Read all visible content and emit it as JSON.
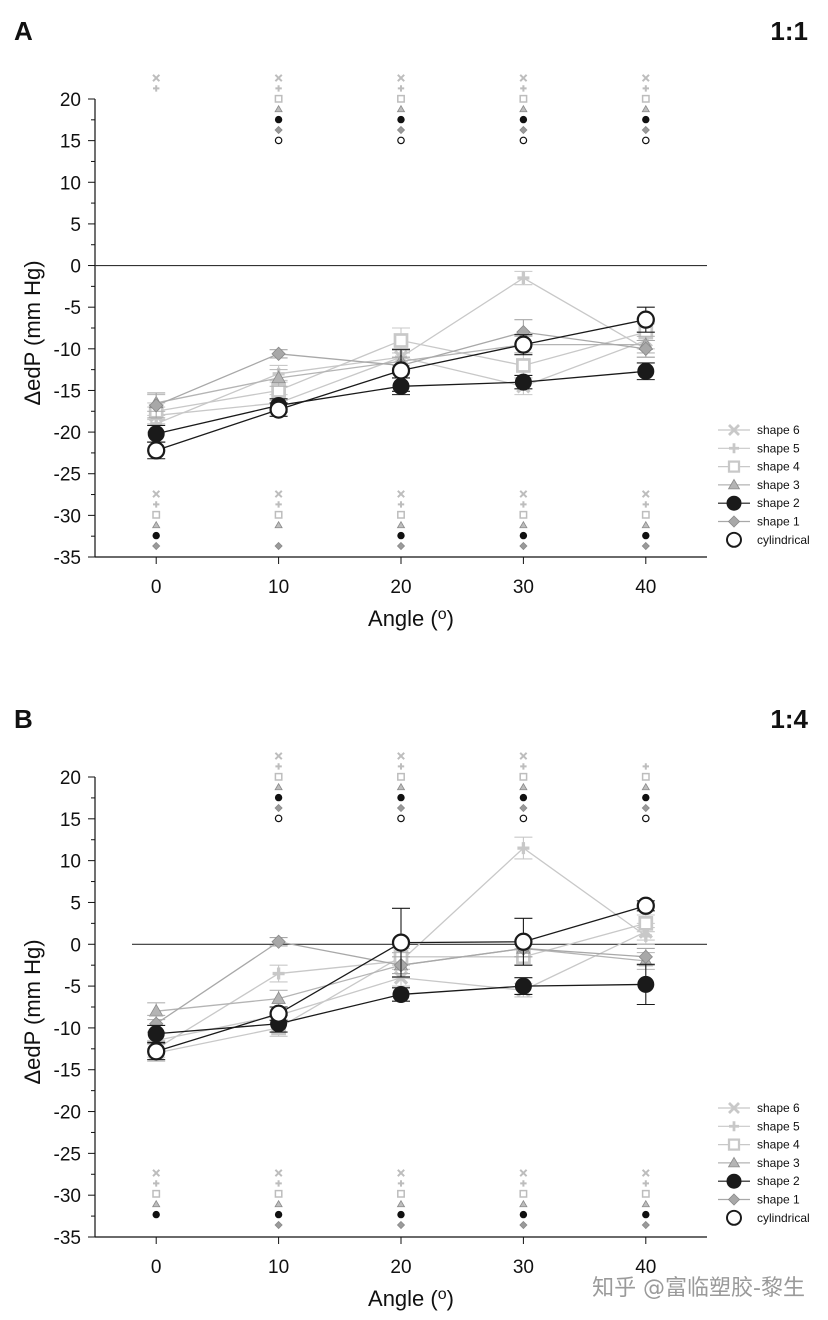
{
  "figure": {
    "watermark": "知乎 @富临塑胶-黎生"
  },
  "series_styles": [
    {
      "key": "shape6",
      "color": "#c8c8c8",
      "marker": "x"
    },
    {
      "key": "shape5",
      "color": "#c8c8c8",
      "marker": "plus"
    },
    {
      "key": "shape4",
      "color": "#c8c8c8",
      "marker": "square"
    },
    {
      "key": "shape3",
      "color": "#b4b4b4",
      "marker": "triangle"
    },
    {
      "key": "shape2",
      "color": "#1a1a1a",
      "marker": "filled-circle"
    },
    {
      "key": "shape1",
      "color": "#a8a8a8",
      "marker": "diamond"
    },
    {
      "key": "cylindrical",
      "color": "#1a1a1a",
      "marker": "open-circle"
    }
  ],
  "chart_data": [
    {
      "panel": "A",
      "ratio": "1:1",
      "type": "line",
      "xlabel": "Angle (",
      "xlabel_sup": "o",
      "xlabel_close": ")",
      "ylabel": "ΔedP (mm Hg)",
      "categories": [
        "0",
        "10",
        "20",
        "30",
        "40"
      ],
      "x": [
        0,
        10,
        20,
        30,
        40
      ],
      "xlim": [
        -5,
        45
      ],
      "ylim": [
        -35,
        20
      ],
      "yticks": [
        20,
        15,
        10,
        5,
        0,
        -5,
        -10,
        -15,
        -20,
        -25,
        -30,
        -35
      ],
      "reference_line": 0,
      "series": [
        {
          "name": "shape 6",
          "values": [
            -18.0,
            -16.5,
            -11.0,
            -14.5,
            -9.0
          ],
          "errors": [
            1.0,
            1.0,
            1.0,
            1.0,
            1.0
          ]
        },
        {
          "name": "shape 5",
          "values": [
            -19.0,
            -13.0,
            -11.0,
            -1.5,
            -10.0
          ],
          "errors": [
            1.0,
            1.0,
            1.0,
            0.8,
            1.0
          ]
        },
        {
          "name": "shape 4",
          "values": [
            -17.5,
            -15.0,
            -9.0,
            -12.0,
            -8.0
          ],
          "errors": [
            1.0,
            1.2,
            1.5,
            1.5,
            1.0
          ]
        },
        {
          "name": "shape 3",
          "values": [
            -16.5,
            -13.5,
            -11.5,
            -9.5,
            -9.5
          ],
          "errors": [
            1.0,
            1.0,
            1.5,
            1.0,
            1.0
          ]
        },
        {
          "name": "shape 2",
          "values": [
            -20.2,
            -16.8,
            -14.5,
            -14.0,
            -12.7
          ],
          "errors": [
            1.0,
            0.8,
            1.0,
            0.8,
            1.0
          ]
        },
        {
          "name": "shape 1",
          "values": [
            -16.8,
            -10.6,
            -12.0,
            -8.0,
            -10.0
          ],
          "errors": [
            1.5,
            0.5,
            1.0,
            1.5,
            1.0
          ]
        },
        {
          "name": "cylindrical",
          "values": [
            -22.2,
            -17.3,
            -12.6,
            -9.5,
            -6.5
          ],
          "errors": [
            1.0,
            0.8,
            2.5,
            1.2,
            1.5
          ]
        }
      ],
      "significance": {
        "top": [
          {
            "x": [
              0,
              10,
              20,
              30,
              40
            ]
          },
          {
            "x": [
              0,
              10,
              20,
              30,
              40
            ]
          },
          {
            "x": [
              10,
              20,
              30,
              40
            ]
          },
          {
            "x": [
              10,
              20,
              30,
              40
            ]
          },
          {
            "x": [
              10,
              20,
              30,
              40
            ]
          },
          {
            "x": [
              10,
              20,
              30,
              40
            ]
          },
          {
            "x": [
              10,
              20,
              30,
              40
            ]
          }
        ],
        "bottom": [
          {
            "x": [
              0,
              10,
              20,
              30,
              40
            ]
          },
          {
            "x": [
              0,
              10,
              20,
              30,
              40
            ]
          },
          {
            "x": [
              0,
              10,
              20,
              30,
              40
            ]
          },
          {
            "x": [
              0,
              10,
              20,
              30,
              40
            ]
          },
          {
            "x": [
              0,
              20,
              30,
              40
            ]
          },
          {
            "x": [
              0,
              10,
              20,
              30,
              40
            ]
          },
          {
            "x": []
          }
        ]
      },
      "legend_position": "bottom-right"
    },
    {
      "panel": "B",
      "ratio": "1:4",
      "type": "line",
      "xlabel": "Angle (",
      "xlabel_sup": "o",
      "xlabel_close": ")",
      "ylabel": "ΔedP (mm Hg)",
      "categories": [
        "0",
        "10",
        "20",
        "30",
        "40"
      ],
      "x": [
        0,
        10,
        20,
        30,
        40
      ],
      "xlim": [
        -5,
        45
      ],
      "ylim": [
        -35,
        20
      ],
      "yticks": [
        20,
        15,
        10,
        5,
        0,
        -5,
        -10,
        -15,
        -20,
        -25,
        -30,
        -35
      ],
      "reference_line": 0,
      "series": [
        {
          "name": "shape 6",
          "values": [
            -11.5,
            -8.5,
            -4.0,
            -5.5,
            1.5
          ],
          "errors": [
            1.0,
            1.0,
            1.0,
            0.8,
            1.0
          ]
        },
        {
          "name": "shape 5",
          "values": [
            -12.5,
            -3.5,
            -2.0,
            11.5,
            1.0
          ],
          "errors": [
            1.0,
            1.0,
            1.0,
            1.3,
            1.0
          ]
        },
        {
          "name": "shape 4",
          "values": [
            -13.0,
            -10.0,
            -1.5,
            -1.5,
            2.5
          ],
          "errors": [
            1.0,
            1.0,
            1.0,
            1.0,
            1.0
          ]
        },
        {
          "name": "shape 3",
          "values": [
            -8.0,
            -6.5,
            -2.5,
            -0.5,
            -2.0
          ],
          "errors": [
            1.0,
            1.0,
            1.5,
            1.0,
            1.0
          ]
        },
        {
          "name": "shape 2",
          "values": [
            -10.7,
            -9.5,
            -6.0,
            -5.0,
            -4.8
          ],
          "errors": [
            1.0,
            1.0,
            0.8,
            1.0,
            2.4
          ]
        },
        {
          "name": "shape 1",
          "values": [
            -9.5,
            0.3,
            -2.5,
            -0.5,
            -1.5
          ],
          "errors": [
            1.0,
            0.5,
            1.0,
            1.0,
            1.0
          ]
        },
        {
          "name": "cylindrical",
          "values": [
            -12.8,
            -8.3,
            0.2,
            0.3,
            4.6
          ],
          "errors": [
            1.0,
            0.8,
            4.1,
            2.8,
            0.6
          ]
        }
      ],
      "significance": {
        "top": [
          {
            "x": [
              10,
              20,
              30
            ]
          },
          {
            "x": [
              10,
              20,
              30,
              40
            ]
          },
          {
            "x": [
              10,
              20,
              30,
              40
            ]
          },
          {
            "x": [
              10,
              20,
              30,
              40
            ]
          },
          {
            "x": [
              10,
              20,
              30,
              40
            ]
          },
          {
            "x": [
              10,
              20,
              30,
              40
            ]
          },
          {
            "x": [
              10,
              20,
              30,
              40
            ]
          }
        ],
        "bottom": [
          {
            "x": [
              0,
              10,
              20,
              30,
              40
            ]
          },
          {
            "x": [
              0,
              10,
              20,
              30,
              40
            ]
          },
          {
            "x": [
              0,
              10,
              20,
              30,
              40
            ]
          },
          {
            "x": [
              0,
              10,
              20,
              30,
              40
            ]
          },
          {
            "x": [
              0,
              10,
              20,
              30,
              40
            ]
          },
          {
            "x": [
              10,
              20,
              30,
              40
            ]
          },
          {
            "x": []
          }
        ]
      },
      "legend_position": "bottom-right"
    }
  ]
}
